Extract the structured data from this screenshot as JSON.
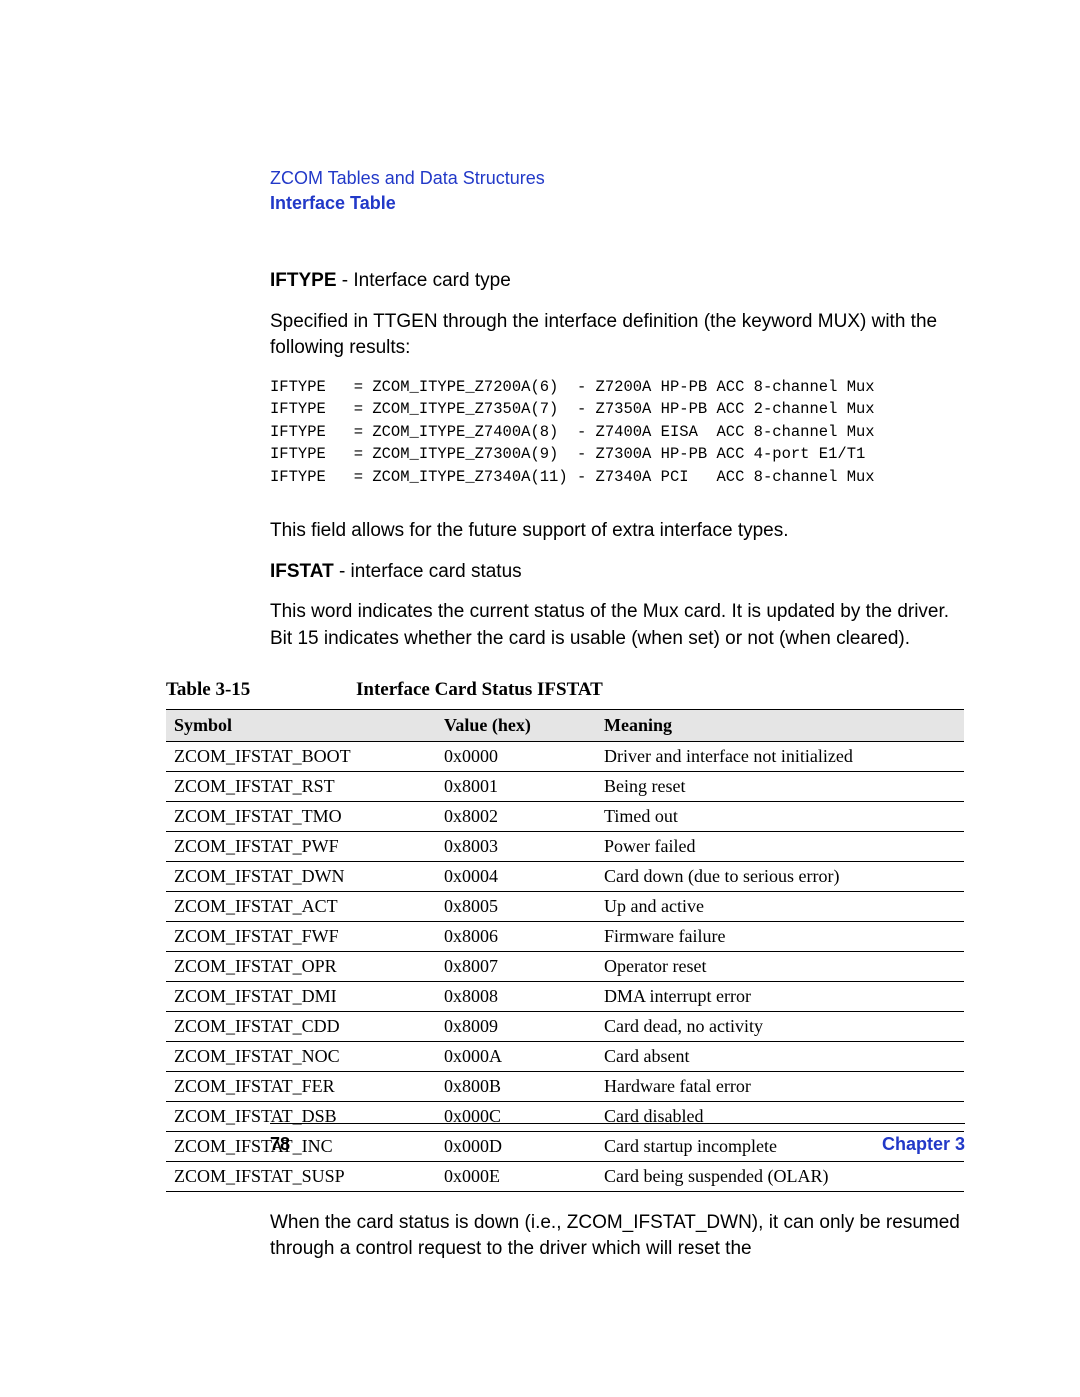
{
  "header": {
    "breadcrumb": "ZCOM Tables and Data Structures",
    "section": "Interface Table"
  },
  "iftype": {
    "label": "IFTYPE",
    "label_desc": " - Interface card type",
    "intro": "Specified in TTGEN through the interface definition (the keyword MUX) with the following results:",
    "codeblock": "IFTYPE   = ZCOM_ITYPE_Z7200A(6)  - Z7200A HP-PB ACC 8-channel Mux\nIFTYPE   = ZCOM_ITYPE_Z7350A(7)  - Z7350A HP-PB ACC 2-channel Mux\nIFTYPE   = ZCOM_ITYPE_Z7400A(8)  - Z7400A EISA  ACC 8-channel Mux\nIFTYPE   = ZCOM_ITYPE_Z7300A(9)  - Z7300A HP-PB ACC 4-port E1/T1\nIFTYPE   = ZCOM_ITYPE_Z7340A(11) - Z7340A PCI   ACC 8-channel Mux",
    "after": "This field allows for the future support of extra interface types."
  },
  "ifstat": {
    "label": "IFSTAT",
    "label_desc": " - interface card status",
    "desc": "This word indicates the current status of the Mux card. It is updated by the driver. Bit 15 indicates whether the card is usable (when set) or not (when cleared)."
  },
  "table": {
    "caption_num": "Table 3-15",
    "caption_title": "Interface Card Status IFSTAT",
    "headers": {
      "symbol": "Symbol",
      "value": "Value (hex)",
      "meaning": "Meaning"
    },
    "rows": [
      {
        "symbol": "ZCOM_IFSTAT_BOOT",
        "value": "0x0000",
        "meaning": "Driver and interface not initialized"
      },
      {
        "symbol": "ZCOM_IFSTAT_RST",
        "value": "0x8001",
        "meaning": "Being reset"
      },
      {
        "symbol": "ZCOM_IFSTAT_TMO",
        "value": "0x8002",
        "meaning": "Timed out"
      },
      {
        "symbol": "ZCOM_IFSTAT_PWF",
        "value": "0x8003",
        "meaning": "Power failed"
      },
      {
        "symbol": "ZCOM_IFSTAT_DWN",
        "value": "0x0004",
        "meaning": "Card down (due to serious error)"
      },
      {
        "symbol": "ZCOM_IFSTAT_ACT",
        "value": "0x8005",
        "meaning": "Up and active"
      },
      {
        "symbol": "ZCOM_IFSTAT_FWF",
        "value": "0x8006",
        "meaning": "Firmware failure"
      },
      {
        "symbol": "ZCOM_IFSTAT_OPR",
        "value": "0x8007",
        "meaning": "Operator reset"
      },
      {
        "symbol": "ZCOM_IFSTAT_DMI",
        "value": "0x8008",
        "meaning": "DMA interrupt error"
      },
      {
        "symbol": "ZCOM_IFSTAT_CDD",
        "value": "0x8009",
        "meaning": "Card dead, no activity"
      },
      {
        "symbol": "ZCOM_IFSTAT_NOC",
        "value": "0x000A",
        "meaning": "Card absent"
      },
      {
        "symbol": "ZCOM_IFSTAT_FER",
        "value": "0x800B",
        "meaning": "Hardware fatal error"
      },
      {
        "symbol": "ZCOM_IFSTAT_DSB",
        "value": "0x000C",
        "meaning": "Card disabled"
      },
      {
        "symbol": "ZCOM_IFSTAT_INC",
        "value": "0x000D",
        "meaning": "Card startup incomplete"
      },
      {
        "symbol": "ZCOM_IFSTAT_SUSP",
        "value": "0x000E",
        "meaning": "Card being suspended (OLAR)"
      }
    ]
  },
  "after_table": "When the card status is down (i.e., ZCOM_IFSTAT_DWN), it can only be resumed through a control request to the driver which will reset the",
  "footer": {
    "page": "78",
    "chapter": "Chapter 3"
  }
}
